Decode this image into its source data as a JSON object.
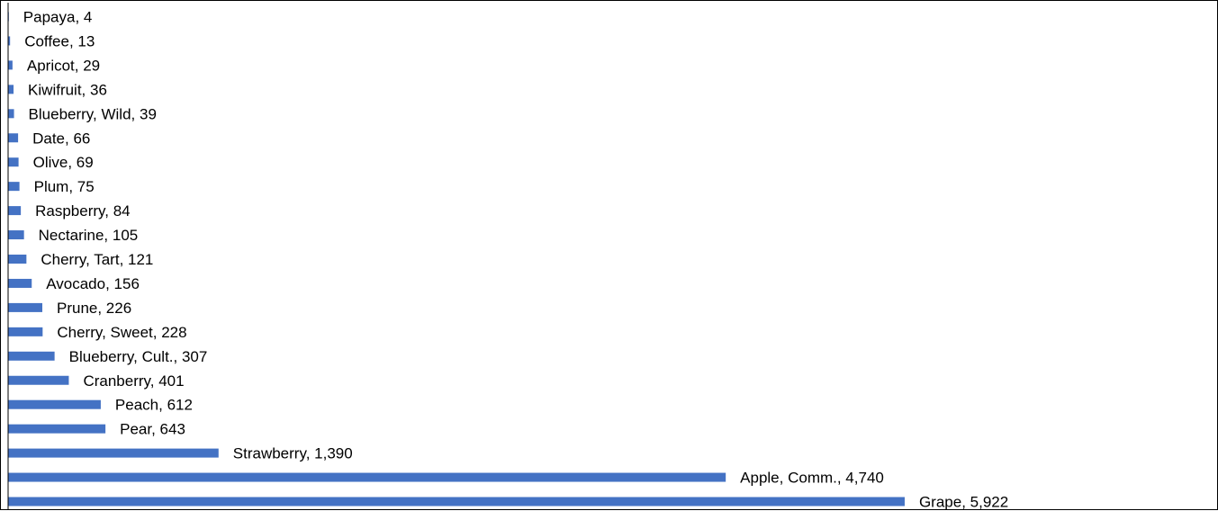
{
  "chart_data": {
    "type": "bar",
    "orientation": "horizontal",
    "title": "",
    "xlabel": "",
    "ylabel": "",
    "legend": "none",
    "grid": false,
    "bar_color": "#4472C4",
    "xlim": [
      0,
      7000
    ],
    "categories": [
      "Papaya",
      "Coffee",
      "Apricot",
      "Kiwifruit",
      "Blueberry, Wild",
      "Date",
      "Olive",
      "Plum",
      "Raspberry",
      "Nectarine",
      "Cherry, Tart",
      "Avocado",
      "Prune",
      "Cherry, Sweet",
      "Blueberry, Cult.",
      "Cranberry",
      "Peach",
      "Pear",
      "Strawberry",
      "Apple, Comm.",
      "Grape"
    ],
    "values": [
      4,
      13,
      29,
      36,
      39,
      66,
      69,
      75,
      84,
      105,
      121,
      156,
      226,
      228,
      307,
      401,
      612,
      643,
      1390,
      4740,
      5922
    ],
    "data_labels": [
      "Papaya, 4",
      "Coffee, 13",
      "Apricot, 29",
      "Kiwifruit, 36",
      "Blueberry, Wild, 39",
      "Date, 66",
      "Olive, 69",
      "Plum, 75",
      "Raspberry, 84",
      "Nectarine, 105",
      "Cherry, Tart, 121",
      "Avocado, 156",
      "Prune, 226",
      "Cherry, Sweet, 228",
      "Blueberry, Cult., 307",
      "Cranberry, 401",
      "Peach, 612",
      "Pear, 643",
      "Strawberry, 1,390",
      "Apple, Comm., 4,740",
      "Grape, 5,922"
    ]
  }
}
